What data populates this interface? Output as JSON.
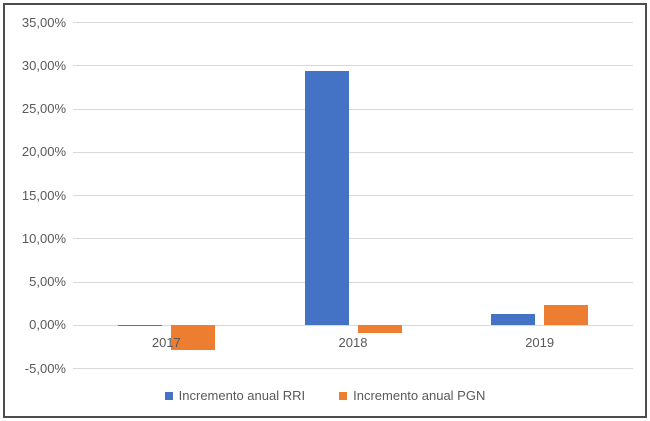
{
  "chart_data": {
    "type": "bar",
    "categories": [
      "2017",
      "2018",
      "2019"
    ],
    "series": [
      {
        "name": "Incremento anual RRI",
        "color": "#4472C4",
        "values": [
          -0.2,
          29.3,
          1.3
        ]
      },
      {
        "name": "Incremento anual PGN",
        "color": "#ED7D31",
        "values": [
          -2.9,
          -1.0,
          2.3
        ]
      }
    ],
    "ylim": [
      -5,
      35
    ],
    "ytick_step": 5,
    "ytick_labels": [
      "35,00%",
      "30,00%",
      "25,00%",
      "20,00%",
      "15,00%",
      "10,00%",
      "5,00%",
      "0,00%",
      "-5,00%"
    ],
    "grid": "horizontal-solid",
    "legend_position": "bottom"
  },
  "legend": {
    "items": [
      {
        "label": "Incremento anual RRI",
        "color": "#4472C4"
      },
      {
        "label": "Incremento anual PGN",
        "color": "#ED7D31"
      }
    ]
  },
  "colors": {
    "series_rri": "#4472C4",
    "series_pgn": "#ED7D31",
    "axis_text": "#595959",
    "gridline": "#d9d9d9",
    "frame_border": "#4d4d4d",
    "background": "#ffffff"
  }
}
